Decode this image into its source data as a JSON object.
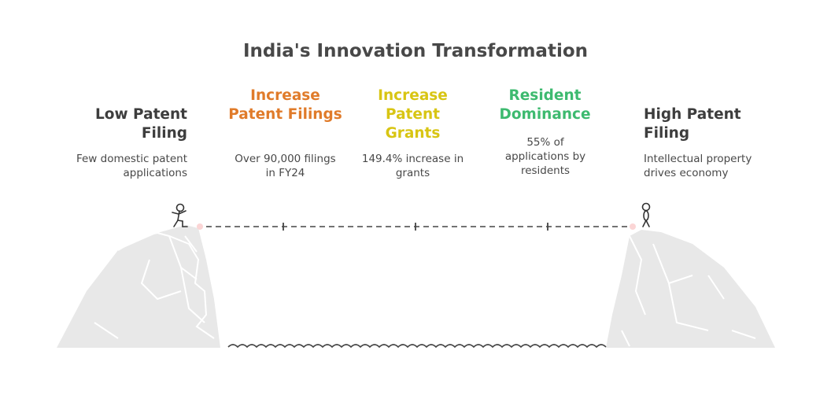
{
  "title": "India's Innovation Transformation",
  "start": {
    "heading": "Low Patent Filing",
    "description": "Few domestic patent applications"
  },
  "steps": [
    {
      "heading": "Increase Patent Filings",
      "description": "Over 90,000 filings in FY24",
      "color": "#e07b2a"
    },
    {
      "heading": "Increase Patent Grants",
      "description": "149.4% increase in grants",
      "color": "#d8c513"
    },
    {
      "heading": "Resident Dominance",
      "description": "55% of applications by residents",
      "color": "#3dba6f"
    }
  ],
  "end": {
    "heading": "High Patent Filing",
    "description": "Intellectual property drives economy"
  },
  "colors": {
    "text": "#3d3d3d",
    "rock": "#e8e8e8",
    "rope": "#444444"
  }
}
